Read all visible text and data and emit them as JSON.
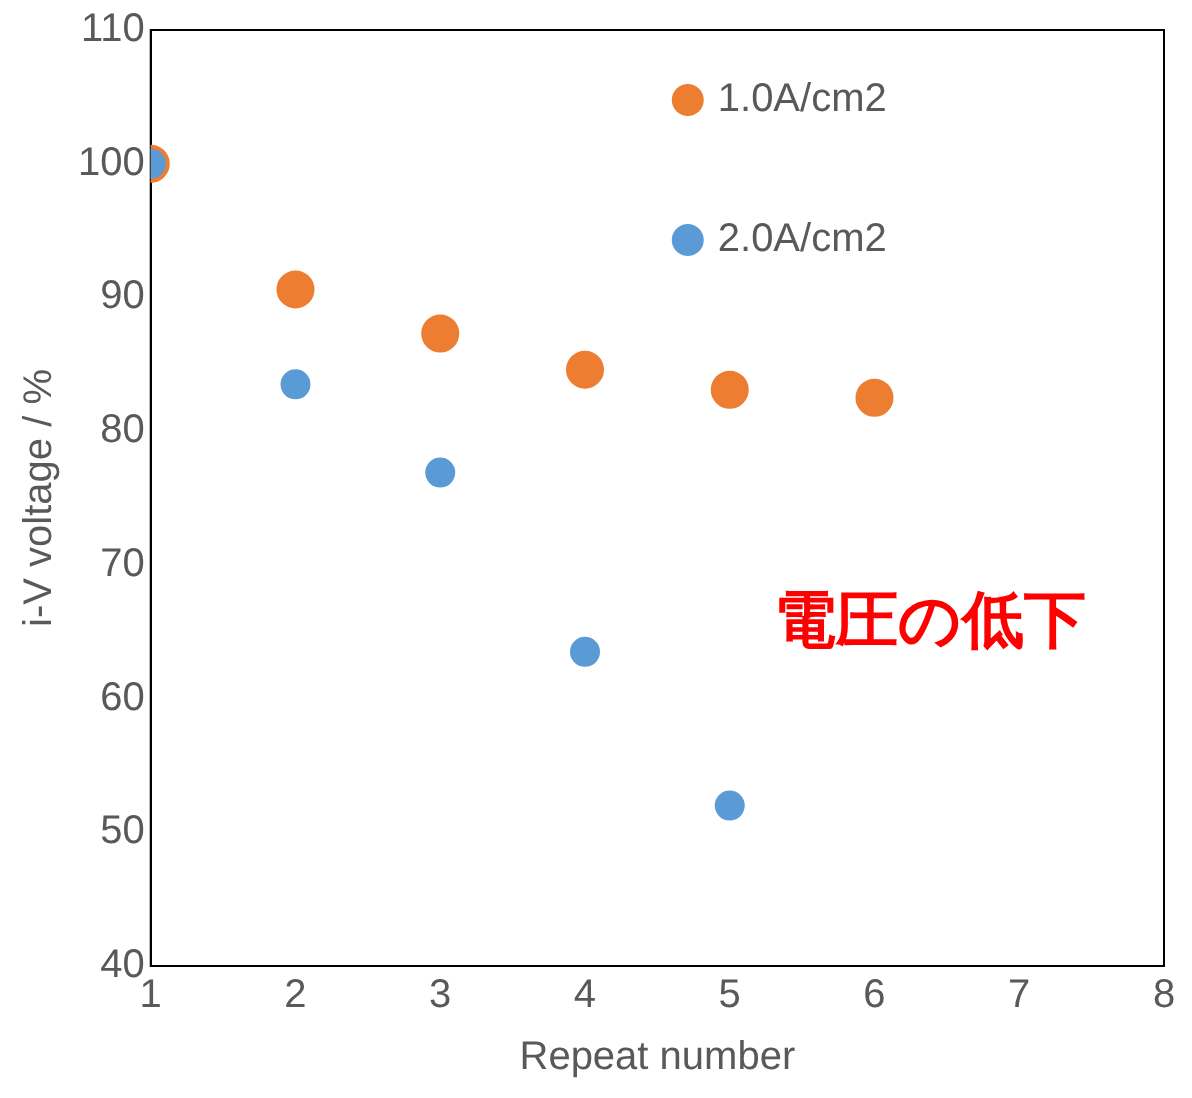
{
  "chart_data": {
    "type": "scatter",
    "xlabel": "Repeat number",
    "ylabel": "i-V voltage / %",
    "xlim": [
      1,
      8
    ],
    "xticks": [
      1,
      2,
      3,
      4,
      5,
      6,
      7,
      8
    ],
    "ylim": [
      40,
      110
    ],
    "yticks": [
      40,
      50,
      60,
      70,
      80,
      90,
      100,
      110
    ],
    "grid": false,
    "legend": "top right",
    "marker": "circle",
    "annotations": [
      "電圧の低下"
    ],
    "series": [
      {
        "name": "1.0A/cm2",
        "color": "#ed7d31",
        "x": [
          1,
          2,
          3,
          4,
          5,
          6
        ],
        "values": [
          100,
          90.6,
          87.3,
          84.6,
          83.1,
          82.5
        ]
      },
      {
        "name": "2.0A/cm2",
        "color": "#5b9bd5",
        "x": [
          1,
          2,
          3,
          4,
          5
        ],
        "values": [
          100,
          83.5,
          76.9,
          63.5,
          52.0
        ]
      }
    ]
  }
}
